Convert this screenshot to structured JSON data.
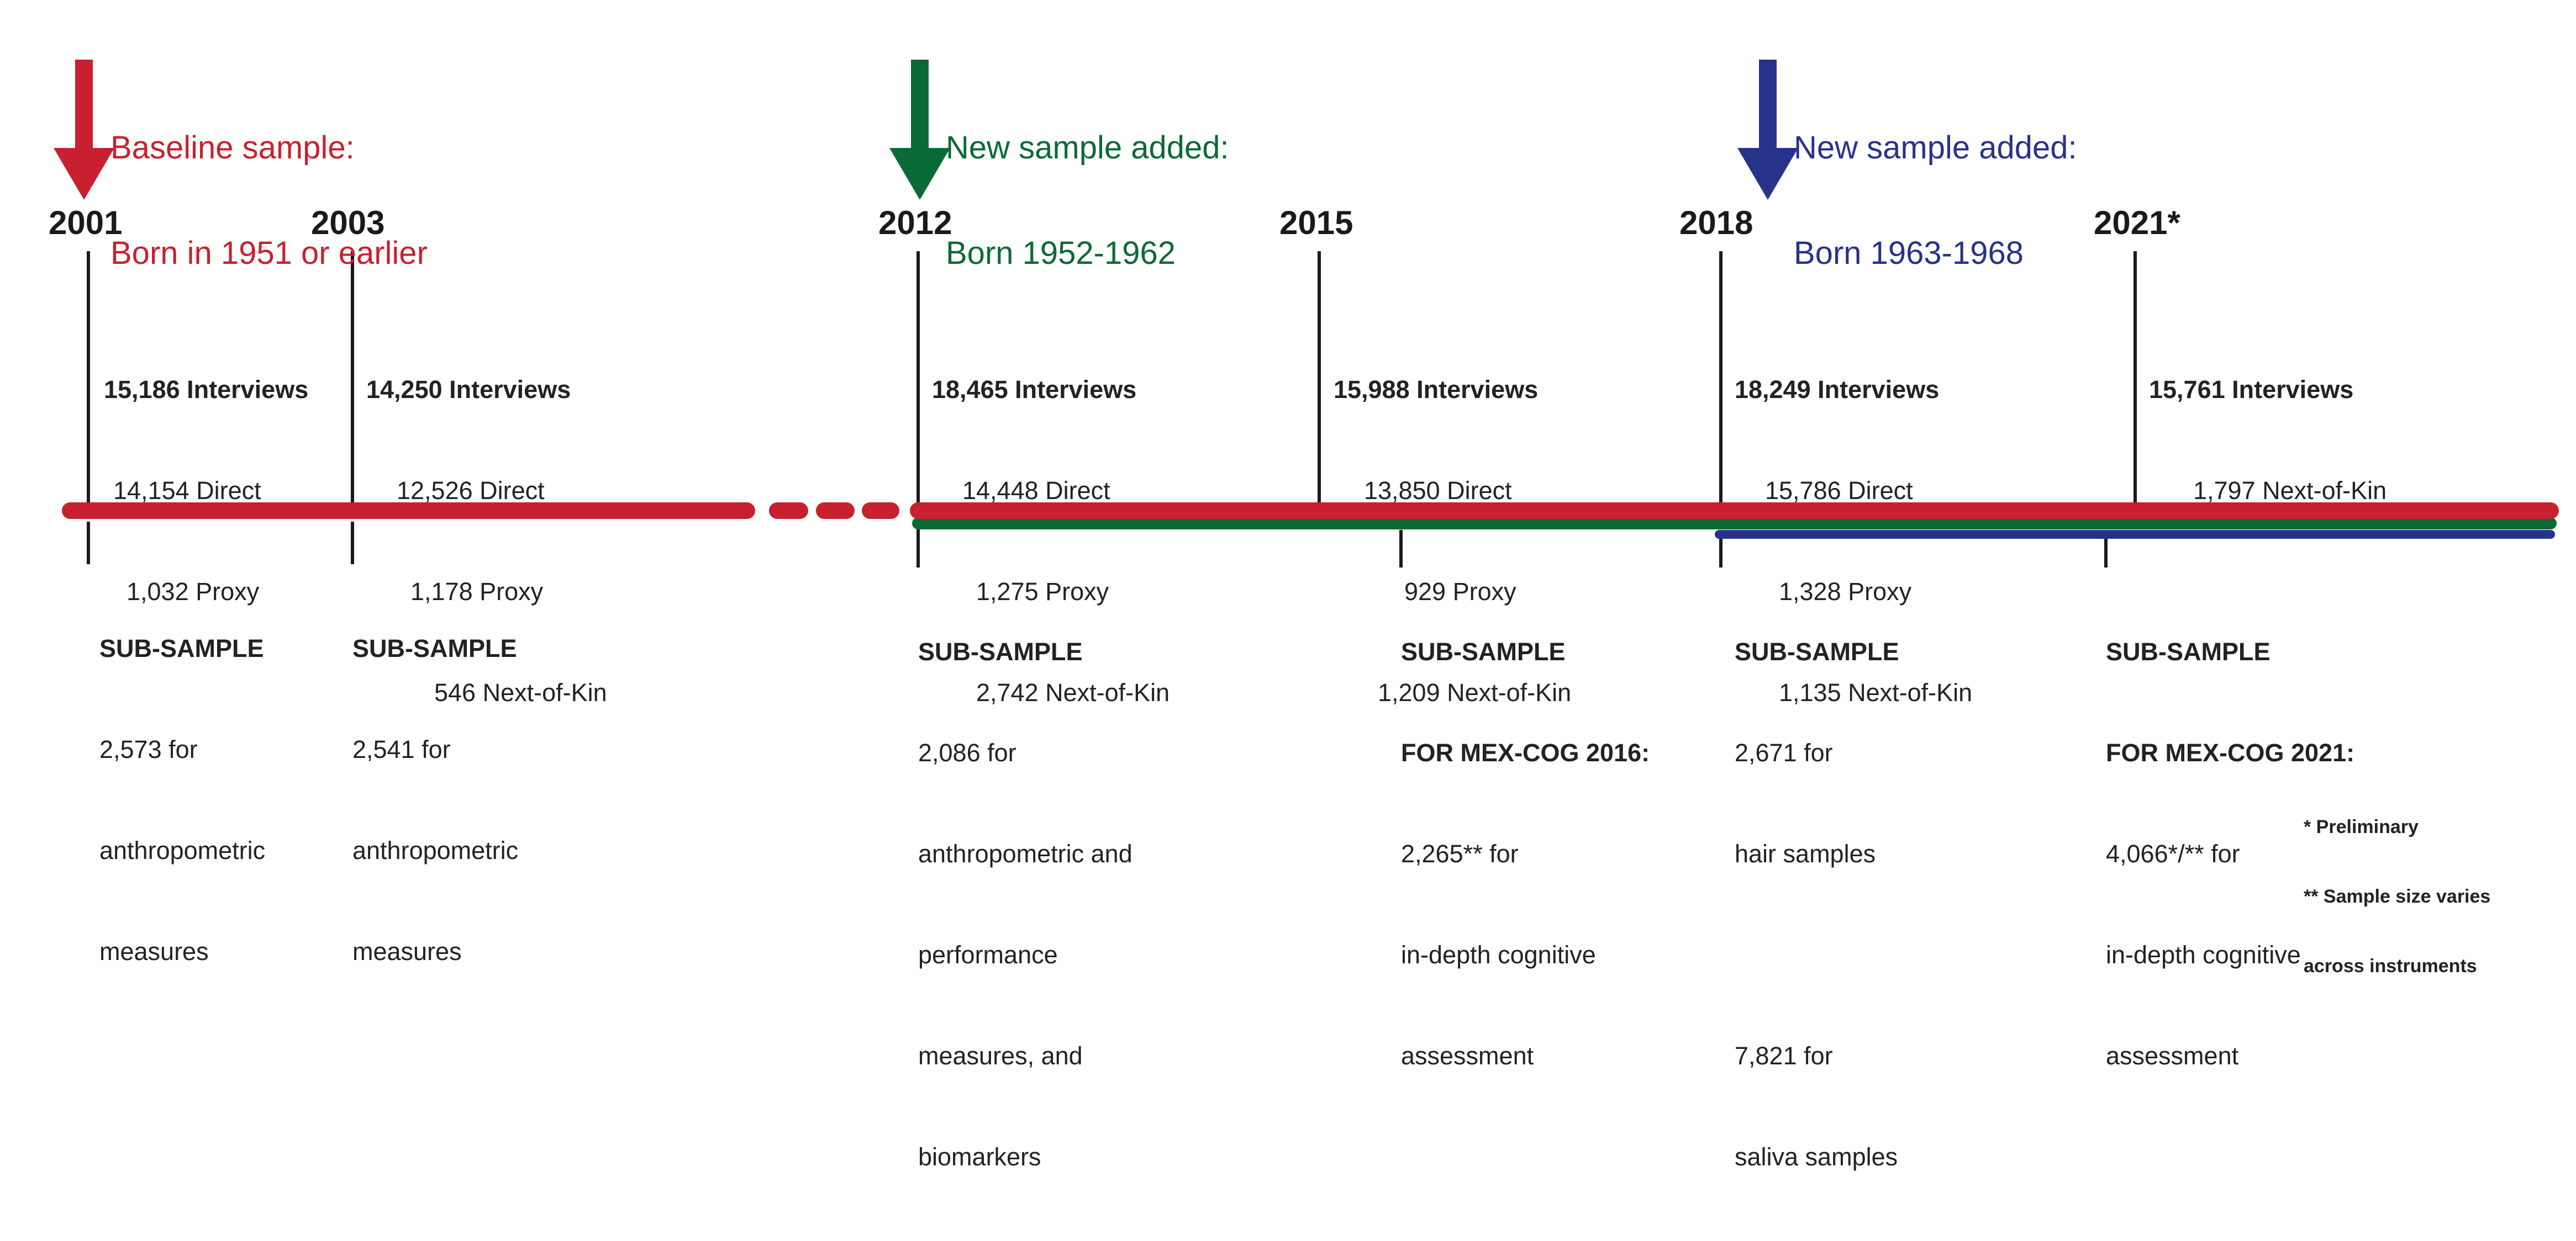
{
  "colors": {
    "baseline": "#c8202f",
    "cohort_2012": "#0a6a35",
    "cohort_2018": "#27328a",
    "ticks": "#1a1a1a"
  },
  "cohorts": [
    {
      "id": "baseline",
      "line1": "Baseline sample:",
      "line2": "Born in 1951 or earlier",
      "color": "#c8202f",
      "arrow_icon": "arrow-down"
    },
    {
      "id": "2012",
      "line1": "New sample added:",
      "line2": "Born 1952-1962",
      "color": "#0a6a35",
      "arrow_icon": "arrow-down"
    },
    {
      "id": "2018",
      "line1": "New sample added:",
      "line2": "Born 1963-1968",
      "color": "#27328a",
      "arrow_icon": "arrow-down"
    }
  ],
  "waves": [
    {
      "year": "2001",
      "interviews": [
        "15,186 Interviews",
        "14,154 Direct",
        "1,032 Proxy"
      ],
      "subsample": [
        "SUB-SAMPLE",
        "2,573 for",
        "anthropometric",
        "measures"
      ]
    },
    {
      "year": "2003",
      "interviews": [
        "14,250 Interviews",
        "12,526 Direct",
        "1,178 Proxy",
        "546 Next-of-Kin"
      ],
      "subsample": [
        "SUB-SAMPLE",
        "2,541 for",
        "anthropometric",
        "measures"
      ]
    },
    {
      "year": "2012",
      "interviews": [
        "18,465 Interviews",
        "14,448 Direct",
        "1,275 Proxy",
        "2,742 Next-of-Kin"
      ],
      "subsample": [
        "SUB-SAMPLE",
        "2,086 for",
        "anthropometric and",
        "performance",
        "measures, and",
        "biomarkers"
      ]
    },
    {
      "year": "2015",
      "interviews": [
        "15,988 Interviews",
        "13,850 Direct",
        "929 Proxy",
        "1,209 Next-of-Kin"
      ],
      "subsample": [
        "SUB-SAMPLE",
        "FOR MEX-COG 2016:",
        "2,265** for",
        "in-depth cognitive",
        "assessment"
      ]
    },
    {
      "year": "2018",
      "interviews": [
        "18,249 Interviews",
        "15,786 Direct",
        "1,328 Proxy",
        "1,135 Next-of-Kin"
      ],
      "subsample": [
        "SUB-SAMPLE",
        "2,671 for",
        "hair samples",
        "",
        "7,821 for",
        "saliva samples"
      ]
    },
    {
      "year": "2021*",
      "interviews": [
        "15,761 Interviews",
        "1,797 Next-of-Kin"
      ],
      "subsample": [
        "SUB-SAMPLE",
        "FOR MEX-COG 2021:",
        "4,066*/** for",
        "in-depth cognitive",
        "assessment"
      ]
    }
  ],
  "notes": [
    "* Preliminary",
    "** Sample size varies",
    "across instruments"
  ]
}
